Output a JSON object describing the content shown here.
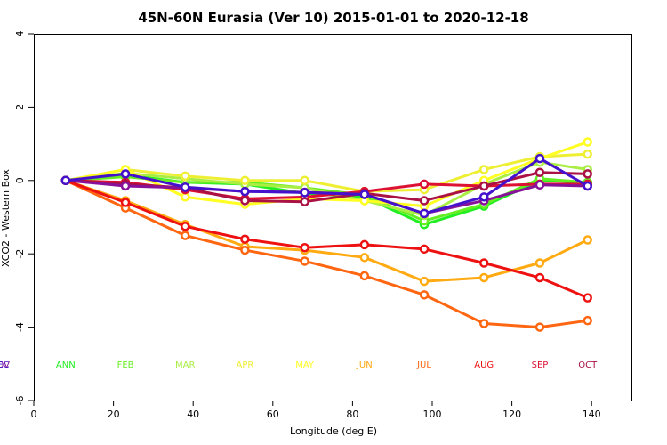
{
  "chart_data": {
    "type": "line",
    "title": "45N-60N Eurasia (Ver 10)   2015-01-01 to 2020-12-18",
    "xlabel": "Longitude (deg E)",
    "ylabel": "XCO2 - Western Box",
    "xlim": [
      0,
      150
    ],
    "ylim": [
      -6,
      4
    ],
    "xticks": [
      0,
      20,
      40,
      60,
      80,
      100,
      120,
      140
    ],
    "yticks": [
      -6,
      -4,
      -2,
      0,
      2,
      4
    ],
    "grid": false,
    "x": [
      8,
      23,
      38,
      53,
      68,
      83,
      98,
      113,
      127,
      139
    ],
    "series": [
      {
        "name": "ANN",
        "color": "#22ee22",
        "values": [
          0,
          0.15,
          -0.05,
          -0.1,
          -0.35,
          -0.45,
          -1.2,
          -0.7,
          0.0,
          -0.05
        ]
      },
      {
        "name": "FEB",
        "color": "#66ee22",
        "values": [
          0,
          0.1,
          -0.05,
          -0.05,
          -0.2,
          -0.4,
          -1.1,
          -0.65,
          0.05,
          -0.05
        ]
      },
      {
        "name": "MAR",
        "color": "#aaee44",
        "values": [
          0,
          0.2,
          0.05,
          -0.1,
          -0.2,
          -0.55,
          -0.95,
          -0.1,
          0.5,
          0.3
        ]
      },
      {
        "name": "APR",
        "color": "#eeee33",
        "values": [
          0,
          0.3,
          0.12,
          0.0,
          0.0,
          -0.3,
          -0.25,
          0.3,
          0.65,
          0.72
        ]
      },
      {
        "name": "MAY",
        "color": "#ffff22",
        "values": [
          0,
          0.3,
          -0.45,
          -0.65,
          -0.5,
          -0.55,
          -0.7,
          0.0,
          0.6,
          1.05
        ]
      },
      {
        "name": "JUN",
        "color": "#ffaa11",
        "values": [
          0,
          -0.55,
          -1.2,
          -1.8,
          -1.9,
          -2.1,
          -2.75,
          -2.65,
          -2.25,
          -1.62
        ]
      },
      {
        "name": "JUL",
        "color": "#ff6611",
        "values": [
          0,
          -0.75,
          -1.5,
          -1.9,
          -2.2,
          -2.6,
          -3.12,
          -3.9,
          -4.0,
          -3.82
        ]
      },
      {
        "name": "AUG",
        "color": "#ee1111",
        "values": [
          0,
          -0.6,
          -1.25,
          -1.6,
          -1.83,
          -1.75,
          -1.87,
          -2.25,
          -2.65,
          -3.2
        ]
      },
      {
        "name": "SEP",
        "color": "#dd1133",
        "values": [
          0,
          -0.05,
          -0.25,
          -0.5,
          -0.45,
          -0.3,
          -0.1,
          -0.15,
          -0.1,
          -0.1
        ]
      },
      {
        "name": "OCT",
        "color": "#aa1144",
        "values": [
          0,
          -0.1,
          -0.2,
          -0.55,
          -0.58,
          -0.35,
          -0.55,
          -0.15,
          0.22,
          0.18
        ]
      },
      {
        "name": "NOV",
        "color": "#881199",
        "values": [
          0,
          -0.15,
          -0.2,
          -0.3,
          -0.32,
          -0.38,
          -0.9,
          -0.55,
          -0.12,
          -0.15
        ]
      },
      {
        "name": "DEC",
        "color": "#4411cc",
        "values": [
          0,
          0.18,
          -0.18,
          -0.3,
          -0.33,
          -0.38,
          -0.9,
          -0.45,
          0.6,
          -0.15
        ]
      }
    ]
  }
}
